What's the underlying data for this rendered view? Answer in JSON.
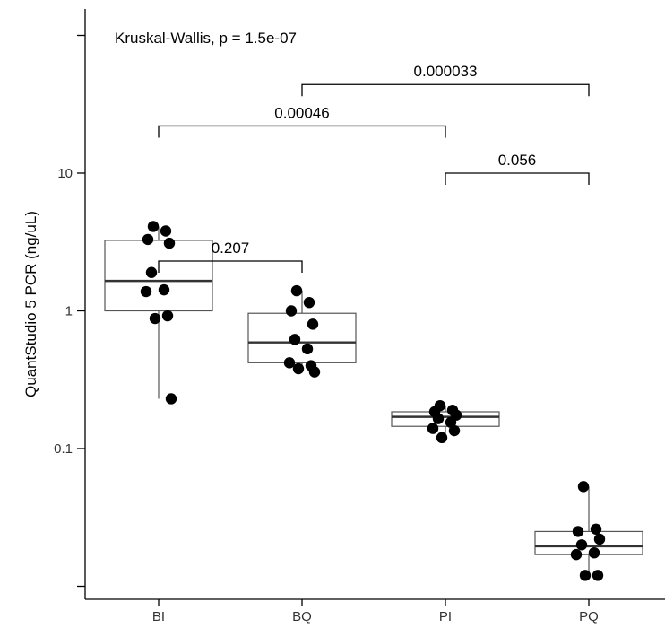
{
  "chart_data": {
    "type": "box",
    "ylabel": "QuantStudio 5 PCR (ng/uL)",
    "y_scale": "log10",
    "ylim": [
      0.0055,
      100
    ],
    "yticks": [
      {
        "value": 0.1,
        "label": "0.1"
      },
      {
        "value": 1,
        "label": "1"
      },
      {
        "value": 10,
        "label": "10"
      }
    ],
    "y_minor_ticks": [
      0.01,
      100
    ],
    "categories": [
      "BI",
      "BQ",
      "PI",
      "PQ"
    ],
    "annotation": "Kruskal-Wallis, p = 1.5e-07",
    "boxes": [
      {
        "category": "BI",
        "q1": 1.0,
        "median": 1.65,
        "q3": 3.25,
        "whisker_low": 0.23,
        "whisker_high": 4.1,
        "points": [
          4.1,
          3.8,
          3.3,
          3.1,
          1.9,
          1.42,
          1.38,
          0.92,
          0.88,
          0.23
        ]
      },
      {
        "category": "BQ",
        "q1": 0.42,
        "median": 0.59,
        "q3": 0.96,
        "whisker_low": 0.36,
        "whisker_high": 1.4,
        "points": [
          1.4,
          1.15,
          1.0,
          0.8,
          0.62,
          0.53,
          0.42,
          0.4,
          0.38,
          0.36
        ]
      },
      {
        "category": "PI",
        "q1": 0.145,
        "median": 0.17,
        "q3": 0.185,
        "whisker_low": 0.12,
        "whisker_high": 0.205,
        "points": [
          0.205,
          0.19,
          0.185,
          0.175,
          0.165,
          0.155,
          0.14,
          0.135,
          0.12
        ]
      },
      {
        "category": "PQ",
        "q1": 0.017,
        "median": 0.0195,
        "q3": 0.025,
        "whisker_low": 0.012,
        "whisker_high": 0.053,
        "points": [
          0.053,
          0.026,
          0.025,
          0.022,
          0.02,
          0.0175,
          0.017,
          0.012,
          0.012
        ]
      }
    ],
    "comparisons": [
      {
        "from": "BI",
        "to": "BQ",
        "label": "0.207",
        "y": 2.3
      },
      {
        "from": "BI",
        "to": "PI",
        "label": "0.00046",
        "y": 22
      },
      {
        "from": "BQ",
        "to": "PQ",
        "label": "0.000033",
        "y": 44
      },
      {
        "from": "PI",
        "to": "PQ",
        "label": "0.056",
        "y": 10
      }
    ]
  }
}
